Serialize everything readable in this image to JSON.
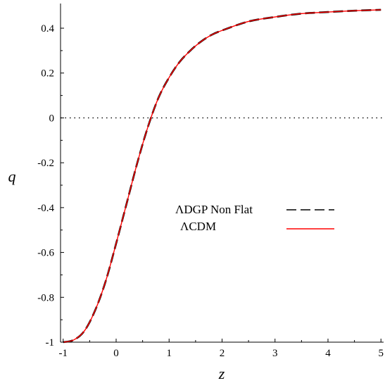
{
  "chart_data": {
    "type": "line",
    "xlabel": "z",
    "ylabel": "q",
    "xlim": [
      -1.05,
      5.05
    ],
    "ylim": [
      -1.0,
      0.51
    ],
    "x_ticks": [
      -1,
      0,
      1,
      2,
      3,
      4,
      5
    ],
    "y_ticks": [
      -1,
      -0.8,
      -0.6,
      -0.4,
      -0.2,
      0,
      0.2,
      0.4
    ],
    "x_tick_labels": [
      "-1",
      "0",
      "1",
      "2",
      "3",
      "4",
      "5"
    ],
    "y_tick_labels": [
      "-1",
      "-0.8",
      "-0.6",
      "-0.4",
      "-0.2",
      "0",
      "0.2",
      "0.4"
    ],
    "grid": false,
    "reference_line": {
      "y": 0,
      "style": "dotted",
      "color": "#000000"
    },
    "legend": {
      "placement": "center-right",
      "entries": [
        {
          "label": "ΛDGP Non Flat",
          "color": "#000000",
          "style": "dashed"
        },
        {
          "label": "ΛCDM",
          "color": "#ff0000",
          "style": "solid"
        }
      ]
    },
    "series": [
      {
        "name": "ΛDGP Non Flat",
        "color": "#000000",
        "style": "dashed",
        "x": [
          -1,
          -0.8,
          -0.6,
          -0.4,
          -0.2,
          0,
          0.2,
          0.4,
          0.6,
          0.8,
          1,
          1.2,
          1.4,
          1.6,
          1.8,
          2,
          2.5,
          3,
          3.5,
          4,
          4.5,
          5
        ],
        "y": [
          -1,
          -0.99,
          -0.95,
          -0.86,
          -0.73,
          -0.56,
          -0.38,
          -0.2,
          -0.04,
          0.09,
          0.18,
          0.25,
          0.3,
          0.34,
          0.37,
          0.39,
          0.43,
          0.45,
          0.465,
          0.472,
          0.478,
          0.482
        ]
      },
      {
        "name": "ΛCDM",
        "color": "#ff0000",
        "style": "solid",
        "x": [
          -1,
          -0.8,
          -0.6,
          -0.4,
          -0.2,
          0,
          0.2,
          0.4,
          0.6,
          0.8,
          1,
          1.2,
          1.4,
          1.6,
          1.8,
          2,
          2.5,
          3,
          3.5,
          4,
          4.5,
          5
        ],
        "y": [
          -1,
          -0.99,
          -0.95,
          -0.86,
          -0.73,
          -0.56,
          -0.38,
          -0.2,
          -0.04,
          0.09,
          0.18,
          0.25,
          0.3,
          0.34,
          0.37,
          0.39,
          0.43,
          0.45,
          0.465,
          0.472,
          0.478,
          0.482
        ]
      }
    ]
  }
}
